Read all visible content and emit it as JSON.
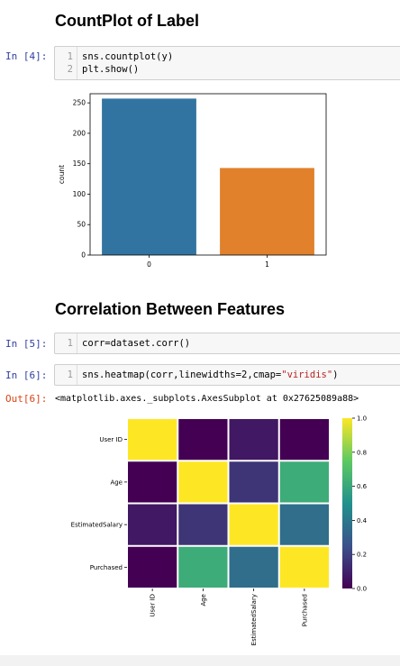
{
  "headings": {
    "countplot": "CountPlot of Label",
    "correlation": "Correlation Between Features"
  },
  "cells": [
    {
      "prompt": "In [4]:",
      "lines": [
        {
          "n": "1",
          "code": "sns.countplot(y)"
        },
        {
          "n": "2",
          "code": "plt.show()"
        }
      ]
    },
    {
      "prompt": "In [5]:",
      "lines": [
        {
          "n": "1",
          "code": "corr=dataset.corr()"
        }
      ]
    },
    {
      "prompt": "In [6]:",
      "lines": [
        {
          "n": "1",
          "code_pre": "sns.heatmap(corr,linewidths=2,cmap=",
          "code_str": "\"viridis\"",
          "code_post": ")"
        }
      ]
    }
  ],
  "output6": {
    "prompt": "Out[6]:",
    "text": "<matplotlib.axes._subplots.AxesSubplot at 0x27625089a88>"
  },
  "chart_data": [
    {
      "type": "bar",
      "categories": [
        "0",
        "1"
      ],
      "values": [
        257,
        143
      ],
      "ylabel": "count",
      "xlabel": "",
      "ylim": [
        0,
        265
      ],
      "yticks": [
        0,
        50,
        100,
        150,
        200,
        250
      ],
      "colors": [
        "#3274a1",
        "#e1812c"
      ]
    },
    {
      "type": "heatmap",
      "labels": [
        "User ID",
        "Age",
        "EstimatedSalary",
        "Purchased"
      ],
      "values": [
        [
          1.0,
          -0.0,
          0.07,
          0.0
        ],
        [
          -0.0,
          1.0,
          0.16,
          0.62
        ],
        [
          0.07,
          0.16,
          1.0,
          0.36
        ],
        [
          0.0,
          0.62,
          0.36,
          1.0
        ]
      ],
      "colormap": "viridis",
      "colorbar_ticks": [
        "0.0",
        "0.2",
        "0.4",
        "0.6",
        "0.8",
        "1.0"
      ],
      "colorbar_range": [
        0.0,
        1.0
      ]
    }
  ]
}
